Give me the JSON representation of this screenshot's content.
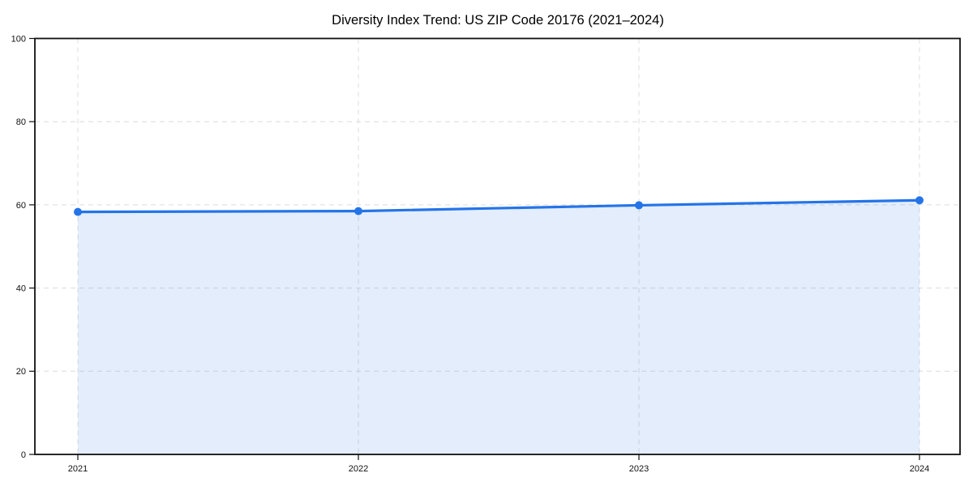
{
  "chart_data": {
    "type": "area",
    "title": "Diversity Index Trend: US ZIP Code 20176 (2021–2024)",
    "categories": [
      "2021",
      "2022",
      "2023",
      "2024"
    ],
    "series": [
      {
        "name": "Diversity Index",
        "values": [
          58.3,
          58.5,
          59.9,
          61.1
        ]
      }
    ],
    "xlabel": "",
    "ylabel": "",
    "ylim": [
      0,
      100
    ],
    "yticks": [
      0,
      20,
      40,
      60,
      80,
      100
    ],
    "grid": "dashed-both-axes",
    "legend": "none",
    "line_color": "#2474e8",
    "marker_color": "#2474e8",
    "fill_color": "#2474e8",
    "fill_opacity": 0.13,
    "grid_color": "#dcdcdc",
    "axis_color": "#111111",
    "text_color": "#111111",
    "background": "#ffffff"
  }
}
